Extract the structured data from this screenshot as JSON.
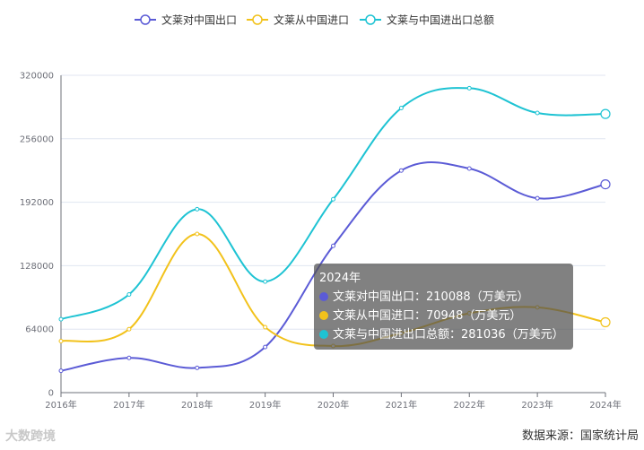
{
  "chart_data": {
    "type": "line",
    "categories": [
      "2016年",
      "2017年",
      "2018年",
      "2019年",
      "2020年",
      "2021年",
      "2022年",
      "2023年",
      "2024年"
    ],
    "ylim": [
      0,
      320000
    ],
    "yticks": [
      0,
      64000,
      128000,
      192000,
      256000,
      320000
    ],
    "smooth": true,
    "grid": true,
    "legend_position": "top-center",
    "series": [
      {
        "name": "文莱对中国出口",
        "color": "#5b5bd6",
        "values": [
          22000,
          35000,
          25000,
          46000,
          148000,
          224000,
          226000,
          196000,
          210088
        ]
      },
      {
        "name": "文莱从中国进口",
        "color": "#f2c21b",
        "values": [
          52000,
          64000,
          160000,
          66000,
          47000,
          60000,
          80000,
          86000,
          70948
        ]
      },
      {
        "name": "文莱与中国进出口总额",
        "color": "#1ec3d3",
        "values": [
          74000,
          99000,
          185000,
          112000,
          195000,
          287000,
          307000,
          282000,
          281036
        ]
      }
    ]
  },
  "tooltip": {
    "title": "2024年",
    "rows": [
      "文莱对中国出口：210088（万美元）",
      "文莱从中国进口：70948（万美元）",
      "文莱与中国进出口总额：281036（万美元）"
    ]
  },
  "source": "数据来源：国家统计局",
  "watermark": "大数跨境"
}
